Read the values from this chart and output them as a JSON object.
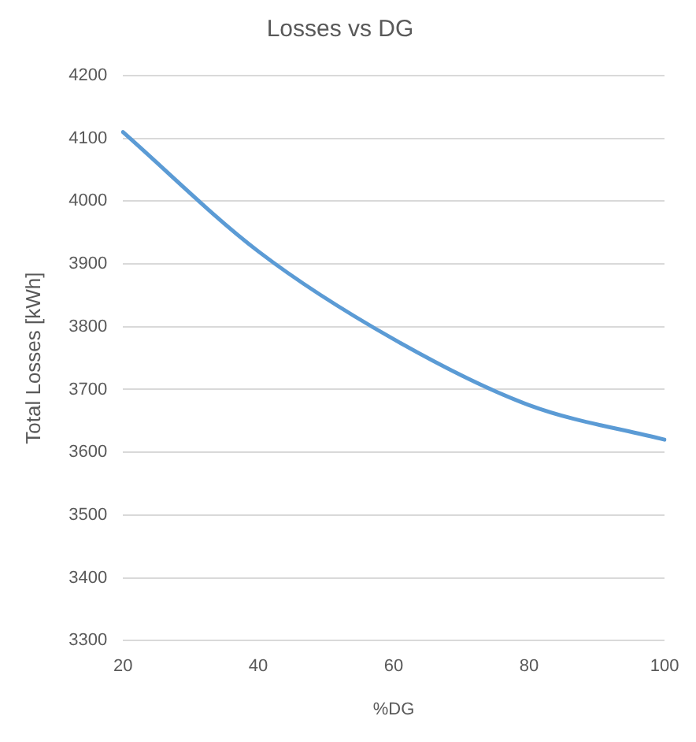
{
  "chart_data": {
    "type": "line",
    "title": "Losses vs DG",
    "xlabel": "%DG",
    "ylabel": "Total Losses [kWh]",
    "categories": [
      "20",
      "40",
      "60",
      "80",
      "100"
    ],
    "series": [
      {
        "color": "#5b9bd5",
        "values": [
          4110,
          3920,
          3780,
          3675,
          3620
        ]
      }
    ],
    "ylim": [
      3300,
      4200
    ],
    "yticks": [
      3300,
      3400,
      3500,
      3600,
      3700,
      3800,
      3900,
      4000,
      4100,
      4200
    ],
    "grid": "y",
    "legend": false,
    "marker": "none",
    "line_style": "solid"
  }
}
